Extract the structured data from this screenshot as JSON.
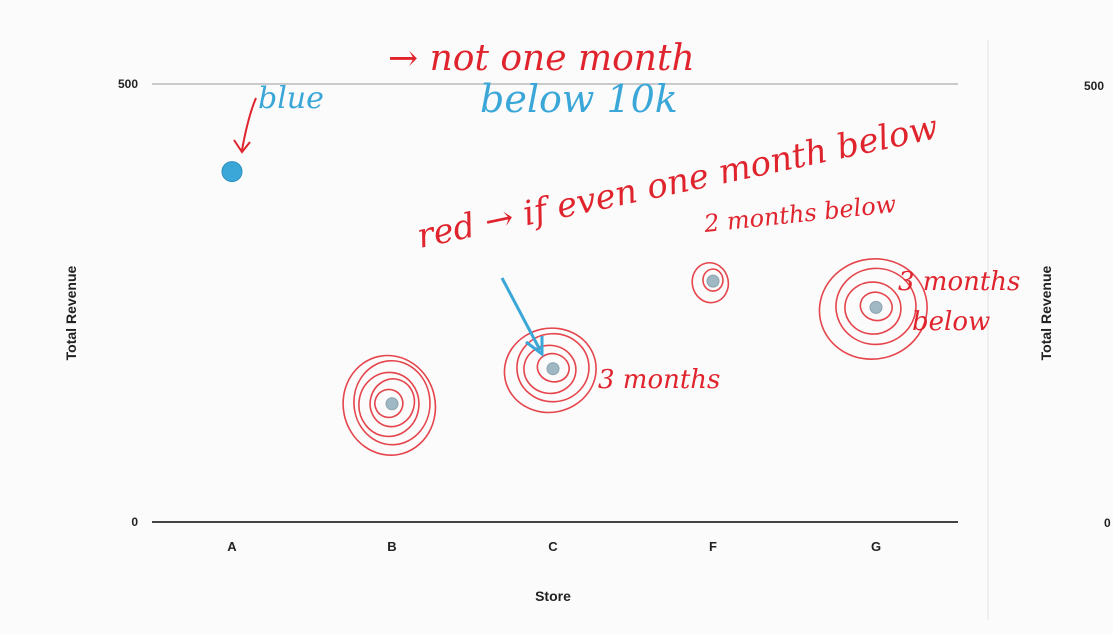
{
  "chart_data": {
    "type": "scatter",
    "title": "",
    "xlabel": "Store",
    "ylabel": "Total Revenue",
    "ylim": [
      0,
      500
    ],
    "yticks": [
      0,
      500
    ],
    "grid": true,
    "categories": [
      "A",
      "B",
      "C",
      "F",
      "G"
    ],
    "values": [
      400,
      135,
      175,
      275,
      245
    ],
    "point_color": "#9fb8c4",
    "highlight_colors": {
      "blue": "#3ba7d8",
      "red": "#e0242d"
    }
  },
  "second_panel": {
    "ylabel": "Total Revenue",
    "yticks": [
      "500",
      "0"
    ]
  },
  "annotations": {
    "blue_label": "blue",
    "red_rule": "→ not one month",
    "blue_rule": "below 10k",
    "red_label": "red → if even one month below",
    "two_months": "2 months below",
    "three_months_c": "3 months",
    "three_months_g": "3 months",
    "below_g": "below"
  }
}
